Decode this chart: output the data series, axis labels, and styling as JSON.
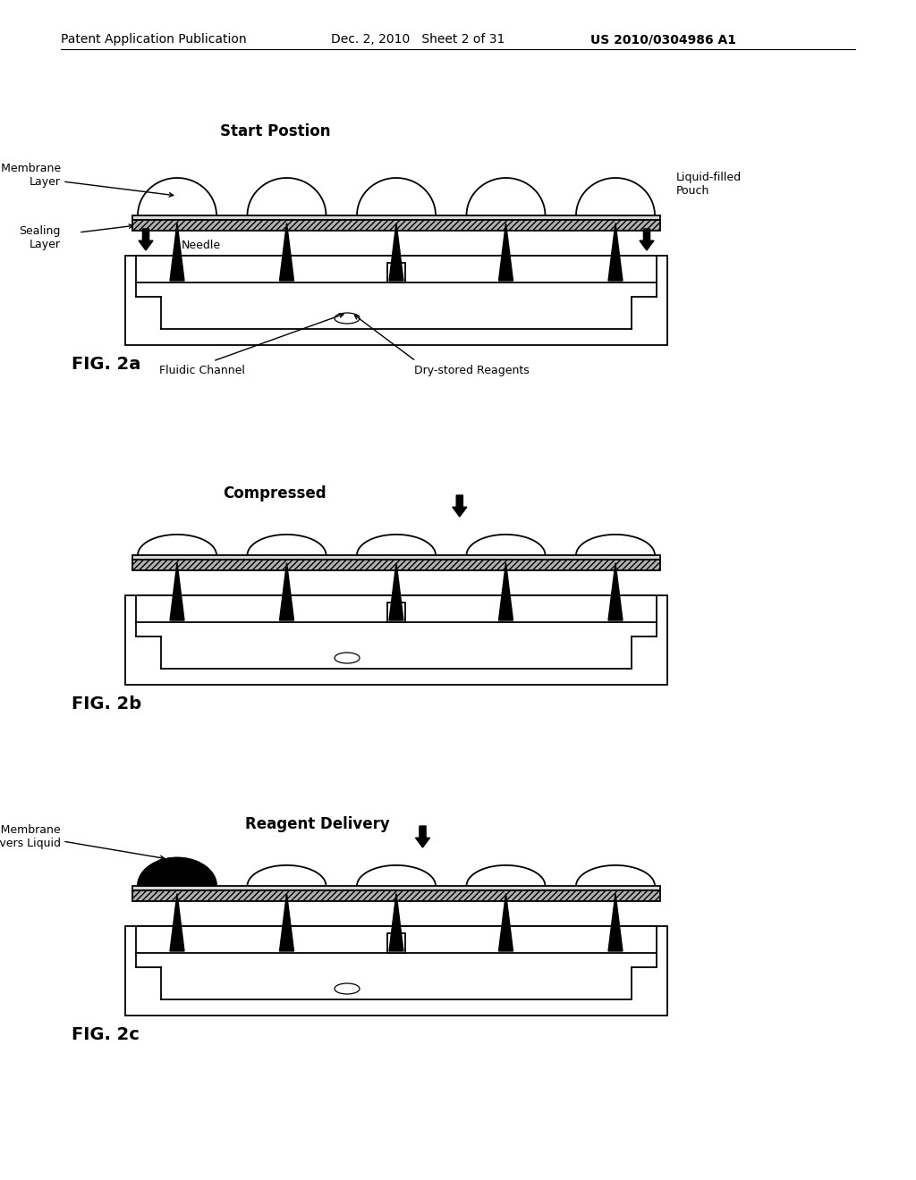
{
  "bg_color": "#ffffff",
  "header_left": "Patent Application Publication",
  "header_mid": "Dec. 2, 2010   Sheet 2 of 31",
  "header_right": "US 2010/0304986 A1",
  "fig2a_title": "Start Postion",
  "fig2b_title": "Compressed",
  "fig2c_title": "Reagent Delivery",
  "fig2a_label": "FIG. 2a",
  "fig2b_label": "FIG. 2b",
  "fig2c_label": "FIG. 2c",
  "ann_flexible_membrane": "Flexible Membrane\nLayer",
  "ann_sealing_layer": "Sealing\nLayer",
  "ann_needle": "Needle",
  "ann_fluidic_channel": "Fluidic Channel",
  "ann_dry_stored": "Dry-stored Reagents",
  "ann_liquid_filled": "Liquid-filled\nPouch",
  "ann_depressed_membrane": "Depressed Membrane\nDelivers Liquid",
  "line_color": "#000000"
}
